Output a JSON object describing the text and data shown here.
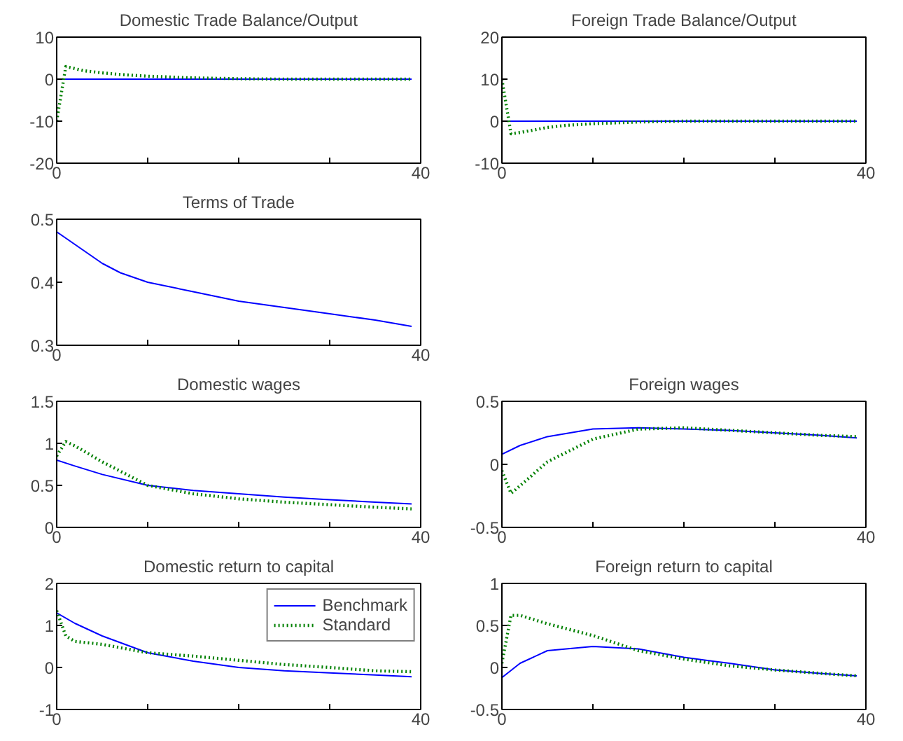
{
  "chart_data": [
    {
      "type": "line",
      "title": "Domestic Trade Balance/Output",
      "xlim": [
        0,
        40
      ],
      "xticks": [
        0,
        {
          "value": 10,
          "label": null
        },
        {
          "value": 20,
          "label": null
        },
        {
          "value": 30,
          "label": null
        },
        40
      ],
      "ylim": [
        -20,
        10
      ],
      "yticks": [
        -20,
        -10,
        0,
        10
      ],
      "series": [
        {
          "color": "#0000ff",
          "x": [
            0,
            39
          ],
          "values": [
            0,
            0
          ]
        },
        {
          "color": "#008000",
          "line_style": "dotted",
          "x": [
            0,
            1,
            2,
            3,
            5,
            7,
            10,
            15,
            20,
            25,
            30,
            35,
            39
          ],
          "values": [
            -10,
            3,
            2.5,
            2,
            1.5,
            1.1,
            0.7,
            0.3,
            0.1,
            0,
            0,
            0,
            0
          ]
        }
      ]
    },
    {
      "type": "line",
      "title": "Foreign Trade Balance/Output",
      "xlim": [
        0,
        40
      ],
      "xticks": [
        0,
        {
          "value": 10,
          "label": null
        },
        {
          "value": 20,
          "label": null
        },
        {
          "value": 30,
          "label": null
        },
        40
      ],
      "ylim": [
        -10,
        20
      ],
      "yticks": [
        -10,
        0,
        10,
        20
      ],
      "series": [
        {
          "color": "#0000ff",
          "x": [
            0,
            39
          ],
          "values": [
            0,
            0
          ]
        },
        {
          "color": "#008000",
          "line_style": "dotted",
          "x": [
            0,
            1,
            2,
            3,
            5,
            7,
            10,
            15,
            20,
            25,
            30,
            35,
            39
          ],
          "values": [
            10,
            -3,
            -2.7,
            -2.3,
            -1.5,
            -1,
            -0.6,
            -0.2,
            0,
            0,
            0,
            0,
            0
          ]
        }
      ]
    },
    {
      "type": "line",
      "title": "Terms of Trade",
      "xlim": [
        0,
        40
      ],
      "xticks": [
        0,
        {
          "value": 10,
          "label": null
        },
        {
          "value": 20,
          "label": null
        },
        {
          "value": 30,
          "label": null
        },
        40
      ],
      "ylim": [
        0.3,
        0.5
      ],
      "yticks": [
        0.3,
        0.4,
        0.5
      ],
      "series": [
        {
          "color": "#0000ff",
          "x": [
            0,
            1,
            2,
            3,
            5,
            7,
            10,
            15,
            20,
            25,
            30,
            35,
            39
          ],
          "values": [
            0.48,
            0.47,
            0.46,
            0.45,
            0.43,
            0.415,
            0.4,
            0.385,
            0.37,
            0.36,
            0.35,
            0.34,
            0.33
          ]
        }
      ]
    },
    {
      "type": "line",
      "title": "Domestic wages",
      "xlim": [
        0,
        40
      ],
      "xticks": [
        0,
        {
          "value": 10,
          "label": null
        },
        {
          "value": 20,
          "label": null
        },
        {
          "value": 30,
          "label": null
        },
        40
      ],
      "ylim": [
        0,
        1.5
      ],
      "yticks": [
        0,
        0.5,
        1,
        1.5
      ],
      "series": [
        {
          "color": "#0000ff",
          "x": [
            0,
            2,
            5,
            10,
            15,
            20,
            25,
            30,
            35,
            39
          ],
          "values": [
            0.8,
            0.73,
            0.63,
            0.5,
            0.44,
            0.4,
            0.36,
            0.33,
            0.3,
            0.28
          ]
        },
        {
          "color": "#008000",
          "line_style": "dotted",
          "x": [
            0,
            1,
            2,
            5,
            10,
            15,
            20,
            25,
            30,
            35,
            39
          ],
          "values": [
            0.85,
            1.02,
            0.97,
            0.78,
            0.5,
            0.4,
            0.34,
            0.3,
            0.27,
            0.24,
            0.22
          ]
        }
      ]
    },
    {
      "type": "line",
      "title": "Foreign wages",
      "xlim": [
        0,
        40
      ],
      "xticks": [
        0,
        {
          "value": 10,
          "label": null
        },
        {
          "value": 20,
          "label": null
        },
        {
          "value": 30,
          "label": null
        },
        40
      ],
      "ylim": [
        -0.5,
        0.5
      ],
      "yticks": [
        -0.5,
        0,
        0.5
      ],
      "series": [
        {
          "color": "#0000ff",
          "x": [
            0,
            2,
            5,
            10,
            15,
            20,
            25,
            30,
            35,
            39
          ],
          "values": [
            0.08,
            0.15,
            0.22,
            0.28,
            0.29,
            0.28,
            0.27,
            0.25,
            0.23,
            0.21
          ]
        },
        {
          "color": "#008000",
          "line_style": "dotted",
          "x": [
            0,
            1,
            2,
            5,
            10,
            15,
            20,
            25,
            30,
            35,
            39
          ],
          "values": [
            -0.05,
            -0.23,
            -0.17,
            0.02,
            0.2,
            0.28,
            0.29,
            0.27,
            0.25,
            0.23,
            0.22
          ]
        }
      ]
    },
    {
      "type": "line",
      "title": "Domestic return to capital",
      "legend": "top right",
      "xlim": [
        0,
        40
      ],
      "xticks": [
        0,
        {
          "value": 10,
          "label": null
        },
        {
          "value": 20,
          "label": null
        },
        {
          "value": 30,
          "label": null
        },
        40
      ],
      "ylim": [
        -1,
        2
      ],
      "yticks": [
        -1,
        0,
        1,
        2
      ],
      "series": [
        {
          "name": "Benchmark",
          "color": "#0000ff",
          "x": [
            0,
            2,
            5,
            10,
            15,
            20,
            25,
            30,
            35,
            39
          ],
          "values": [
            1.3,
            1.05,
            0.75,
            0.35,
            0.15,
            0,
            -0.08,
            -0.13,
            -0.18,
            -0.22
          ]
        },
        {
          "name": "Standard",
          "color": "#008000",
          "line_style": "dotted",
          "x": [
            0,
            1,
            2,
            5,
            10,
            15,
            20,
            25,
            30,
            35,
            39
          ],
          "values": [
            1.35,
            0.75,
            0.62,
            0.55,
            0.35,
            0.27,
            0.17,
            0.07,
            0,
            -0.08,
            -0.1
          ]
        }
      ]
    },
    {
      "type": "line",
      "title": "Foreign return to capital",
      "xlim": [
        0,
        40
      ],
      "xticks": [
        0,
        {
          "value": 10,
          "label": null
        },
        {
          "value": 20,
          "label": null
        },
        {
          "value": 30,
          "label": null
        },
        40
      ],
      "ylim": [
        -0.5,
        1
      ],
      "yticks": [
        -0.5,
        0,
        0.5,
        1
      ],
      "series": [
        {
          "color": "#0000ff",
          "x": [
            0,
            2,
            5,
            10,
            15,
            20,
            25,
            30,
            35,
            39
          ],
          "values": [
            -0.12,
            0.05,
            0.2,
            0.25,
            0.22,
            0.12,
            0.05,
            -0.03,
            -0.07,
            -0.1
          ]
        },
        {
          "color": "#008000",
          "line_style": "dotted",
          "x": [
            0,
            1,
            2,
            5,
            10,
            15,
            20,
            25,
            30,
            35,
            39
          ],
          "values": [
            0.05,
            0.62,
            0.62,
            0.52,
            0.38,
            0.2,
            0.1,
            0.02,
            -0.03,
            -0.07,
            -0.1
          ]
        }
      ]
    }
  ]
}
